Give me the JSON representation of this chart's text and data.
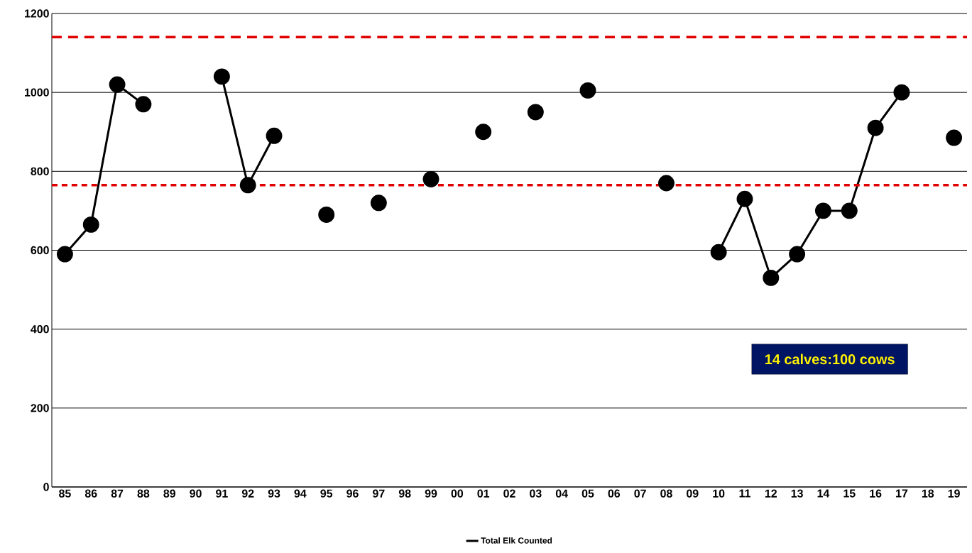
{
  "chart_data": {
    "type": "line",
    "categories": [
      "85",
      "86",
      "87",
      "88",
      "89",
      "90",
      "91",
      "92",
      "93",
      "94",
      "95",
      "96",
      "97",
      "98",
      "99",
      "00",
      "01",
      "02",
      "03",
      "04",
      "05",
      "06",
      "07",
      "08",
      "09",
      "10",
      "11",
      "12",
      "13",
      "14",
      "15",
      "16",
      "17",
      "18",
      "19"
    ],
    "series": [
      {
        "name": "Total Elk Counted",
        "color": "#000000",
        "values": [
          590,
          665,
          1020,
          970,
          null,
          null,
          1040,
          765,
          890,
          null,
          690,
          null,
          720,
          null,
          780,
          null,
          900,
          null,
          950,
          null,
          1005,
          null,
          null,
          770,
          null,
          595,
          730,
          530,
          590,
          700,
          700,
          910,
          1000,
          null,
          885
        ]
      }
    ],
    "ylim": [
      0,
      1200
    ],
    "yticks": [
      0,
      200,
      400,
      600,
      800,
      1000,
      1200
    ],
    "grid": "y",
    "legend": "bottom",
    "marker": "circle",
    "line_style": "solid",
    "ref_lines": [
      {
        "axis": "y",
        "value": 1140,
        "color": "#e00000",
        "line_style": "dashed"
      },
      {
        "axis": "y",
        "value": 765,
        "color": "#e00000",
        "line_style": "dashed"
      }
    ],
    "annotations": [
      "14 calves:100 cows"
    ]
  }
}
